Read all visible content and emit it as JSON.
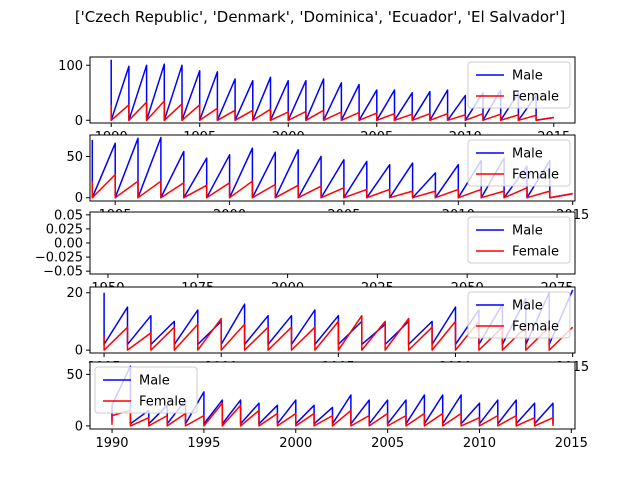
{
  "figure": {
    "title": "['Czech Republic', 'Denmark', 'Dominica', 'Ecuador', 'El Salvador']"
  },
  "colors": {
    "male": "#0000ff",
    "female": "#ff0000"
  },
  "chart_data": [
    {
      "type": "line",
      "country": "Czech Republic",
      "xlim": [
        1988.8,
        2016.2
      ],
      "ylim": [
        -5,
        115
      ],
      "xticks": [
        1990,
        1995,
        2000,
        2005,
        2010,
        2015
      ],
      "yticks": [
        0,
        100
      ],
      "legend": {
        "entries": [
          "Male",
          "Female"
        ],
        "loc": "upper right"
      },
      "series": [
        {
          "name": "Male",
          "x": [
            1990,
            1990,
            1991,
            1991,
            1992,
            1992,
            1993,
            1993,
            1994,
            1994,
            1995,
            1995,
            1996,
            1996,
            1997,
            1997,
            1998,
            1998,
            1999,
            1999,
            2000,
            2000,
            2001,
            2001,
            2002,
            2002,
            2003,
            2003,
            2004,
            2004,
            2005,
            2005,
            2006,
            2006,
            2007,
            2007,
            2008,
            2008,
            2009,
            2009,
            2010,
            2010,
            2011,
            2011,
            2012,
            2012,
            2013,
            2013,
            2014,
            2014,
            2015
          ],
          "y": [
            110,
            0,
            98,
            0,
            100,
            0,
            102,
            0,
            100,
            0,
            90,
            0,
            88,
            0,
            75,
            0,
            72,
            0,
            78,
            0,
            72,
            0,
            72,
            0,
            75,
            0,
            68,
            0,
            65,
            0,
            55,
            0,
            55,
            0,
            50,
            0,
            52,
            0,
            55,
            0,
            45,
            0,
            50,
            0,
            55,
            0,
            50,
            0,
            45,
            0,
            5
          ]
        },
        {
          "name": "Female",
          "x": [
            1990,
            1990,
            1991,
            1991,
            1992,
            1992,
            1993,
            1993,
            1994,
            1994,
            1995,
            1995,
            1996,
            1996,
            1997,
            1997,
            1998,
            1998,
            1999,
            1999,
            2000,
            2000,
            2001,
            2001,
            2002,
            2002,
            2003,
            2003,
            2004,
            2004,
            2005,
            2005,
            2006,
            2006,
            2007,
            2007,
            2008,
            2008,
            2009,
            2009,
            2010,
            2010,
            2011,
            2011,
            2012,
            2012,
            2013,
            2013,
            2014,
            2014,
            2015
          ],
          "y": [
            28,
            0,
            28,
            0,
            33,
            0,
            35,
            0,
            30,
            0,
            28,
            0,
            22,
            0,
            18,
            0,
            18,
            0,
            20,
            0,
            15,
            0,
            16,
            0,
            18,
            0,
            15,
            0,
            14,
            0,
            13,
            0,
            12,
            0,
            11,
            0,
            12,
            0,
            12,
            0,
            10,
            0,
            12,
            0,
            11,
            0,
            10,
            0,
            9,
            0,
            5
          ]
        }
      ]
    },
    {
      "type": "line",
      "country": "Denmark",
      "xlim": [
        1993.9,
        2015.1
      ],
      "ylim": [
        -4,
        76
      ],
      "xticks": [
        1995,
        2000,
        2005,
        2010,
        2015
      ],
      "yticks": [
        0,
        50
      ],
      "legend": {
        "entries": [
          "Male",
          "Female"
        ],
        "loc": "upper right"
      },
      "series": [
        {
          "name": "Male",
          "x": [
            1994,
            1994,
            1995,
            1995,
            1996,
            1996,
            1997,
            1997,
            1998,
            1998,
            1999,
            1999,
            2000,
            2000,
            2001,
            2001,
            2002,
            2002,
            2003,
            2003,
            2004,
            2004,
            2005,
            2005,
            2006,
            2006,
            2007,
            2007,
            2008,
            2008,
            2009,
            2009,
            2010,
            2010,
            2011,
            2011,
            2012,
            2012,
            2013,
            2013,
            2014,
            2014,
            2015
          ],
          "y": [
            70,
            0,
            66,
            0,
            72,
            0,
            73,
            0,
            56,
            0,
            48,
            0,
            52,
            0,
            60,
            0,
            55,
            0,
            58,
            0,
            50,
            0,
            46,
            0,
            44,
            0,
            40,
            0,
            42,
            0,
            30,
            0,
            40,
            0,
            45,
            0,
            48,
            0,
            38,
            0,
            45,
            0,
            5
          ]
        },
        {
          "name": "Female",
          "x": [
            1994,
            1994,
            1995,
            1995,
            1996,
            1996,
            1997,
            1997,
            1998,
            1998,
            1999,
            1999,
            2000,
            2000,
            2001,
            2001,
            2002,
            2002,
            2003,
            2003,
            2004,
            2004,
            2005,
            2005,
            2006,
            2006,
            2007,
            2007,
            2008,
            2008,
            2009,
            2009,
            2010,
            2010,
            2011,
            2011,
            2012,
            2012,
            2013,
            2013,
            2014,
            2014,
            2015
          ],
          "y": [
            20,
            0,
            28,
            0,
            20,
            0,
            20,
            0,
            18,
            0,
            15,
            0,
            18,
            0,
            20,
            0,
            16,
            0,
            15,
            0,
            14,
            0,
            12,
            0,
            10,
            0,
            10,
            0,
            8,
            0,
            8,
            0,
            10,
            0,
            10,
            0,
            8,
            0,
            12,
            0,
            8,
            0,
            5
          ]
        }
      ]
    },
    {
      "type": "line",
      "country": "Dominica",
      "xlim": [
        1945,
        2080
      ],
      "ylim": [
        -0.055,
        0.055
      ],
      "xticks": [
        1950,
        1975,
        2000,
        2025,
        2050,
        2075
      ],
      "xtick_labels": [
        "1950",
        "1975",
        "2000",
        "2025",
        "2050",
        "2075"
      ],
      "xticks_partially_hidden": true,
      "yticks": [
        -0.05,
        -0.025,
        0.0,
        0.025,
        0.05
      ],
      "ytick_labels": [
        "−0.05",
        "−0.025",
        "0.00",
        "0.025",
        "0.05"
      ],
      "legend": {
        "entries": [
          "Male",
          "Female"
        ],
        "loc": "upper right"
      },
      "series": [
        {
          "name": "Male",
          "x": [],
          "y": []
        },
        {
          "name": "Female",
          "x": [],
          "y": []
        }
      ]
    },
    {
      "type": "line",
      "country": "Ecuador",
      "xlim": [
        1994.4,
        2015.1
      ],
      "ylim": [
        -1,
        22
      ],
      "xticks": [
        1995,
        2000,
        2005,
        2010,
        2015
      ],
      "yticks": [
        0,
        20
      ],
      "legend": {
        "entries": [
          "Male",
          "Female"
        ],
        "loc": "upper right"
      },
      "series": [
        {
          "name": "Male",
          "x": [
            1995,
            1995,
            1996,
            1996,
            1997,
            1997,
            1998,
            1998,
            1999,
            1999,
            2000,
            2000,
            2001,
            2001,
            2002,
            2002,
            2003,
            2003,
            2004,
            2004,
            2005,
            2005,
            2006,
            2006,
            2007,
            2007,
            2008,
            2008,
            2009,
            2009,
            2010,
            2010,
            2011,
            2011,
            2012,
            2012,
            2013,
            2013,
            2014,
            2014,
            2015
          ],
          "y": [
            20,
            2,
            15,
            2,
            12,
            2,
            10,
            2,
            14,
            2,
            10,
            2,
            16,
            2,
            12,
            2,
            12,
            2,
            14,
            2,
            12,
            2,
            10,
            2,
            9,
            2,
            10,
            2,
            10,
            2,
            15,
            2,
            14,
            2,
            16,
            2,
            18,
            2,
            20,
            2,
            21
          ]
        },
        {
          "name": "Female",
          "x": [
            1995,
            1995,
            1996,
            1996,
            1997,
            1997,
            1998,
            1998,
            1999,
            1999,
            2000,
            2000,
            2001,
            2001,
            2002,
            2002,
            2003,
            2003,
            2004,
            2004,
            2005,
            2005,
            2006,
            2006,
            2007,
            2007,
            2008,
            2008,
            2009,
            2009,
            2010,
            2010,
            2011,
            2011,
            2012,
            2012,
            2013,
            2013,
            2014,
            2014,
            2015
          ],
          "y": [
            5,
            0,
            8,
            0,
            6,
            0,
            8,
            0,
            9,
            0,
            11,
            0,
            9,
            0,
            8,
            0,
            8,
            0,
            8,
            0,
            10,
            0,
            12,
            0,
            10,
            0,
            11,
            0,
            8,
            0,
            10,
            0,
            10,
            0,
            8,
            0,
            8,
            0,
            8,
            0,
            8
          ]
        }
      ]
    },
    {
      "type": "line",
      "country": "El Salvador",
      "xlim": [
        1988.8,
        2015.2
      ],
      "ylim": [
        -3,
        62
      ],
      "xticks": [
        1990,
        1995,
        2000,
        2005,
        2010,
        2015
      ],
      "yticks": [
        0,
        50
      ],
      "legend": {
        "entries": [
          "Male",
          "Female"
        ],
        "loc": "upper left"
      },
      "series": [
        {
          "name": "Male",
          "x": [
            1990,
            1990,
            1991,
            1991,
            1992,
            1992,
            1993,
            1993,
            1994,
            1994,
            1995,
            1995,
            1996,
            1996,
            1997,
            1997,
            1998,
            1998,
            1999,
            1999,
            2000,
            2000,
            2001,
            2001,
            2002,
            2002,
            2003,
            2003,
            2004,
            2004,
            2005,
            2005,
            2006,
            2006,
            2007,
            2007,
            2008,
            2008,
            2009,
            2009,
            2010,
            2010,
            2011,
            2011,
            2012,
            2012,
            2013,
            2013,
            2014,
            2014
          ],
          "y": [
            5,
            20,
            58,
            2,
            15,
            2,
            20,
            2,
            25,
            2,
            33,
            2,
            25,
            2,
            25,
            2,
            22,
            2,
            20,
            2,
            25,
            2,
            20,
            2,
            18,
            2,
            30,
            2,
            25,
            2,
            25,
            2,
            25,
            2,
            30,
            2,
            30,
            2,
            30,
            2,
            22,
            2,
            25,
            2,
            25,
            2,
            22,
            2,
            22,
            2
          ]
        },
        {
          "name": "Female",
          "x": [
            1990,
            1990,
            1991,
            1991,
            1992,
            1992,
            1993,
            1993,
            1994,
            1994,
            1995,
            1995,
            1996,
            1996,
            1997,
            1997,
            1998,
            1998,
            1999,
            1999,
            2000,
            2000,
            2001,
            2001,
            2002,
            2002,
            2003,
            2003,
            2004,
            2004,
            2005,
            2005,
            2006,
            2006,
            2007,
            2007,
            2008,
            2008,
            2009,
            2009,
            2010,
            2010,
            2011,
            2011,
            2012,
            2012,
            2013,
            2013,
            2014,
            2014
          ],
          "y": [
            1,
            10,
            15,
            0,
            8,
            0,
            10,
            0,
            12,
            0,
            10,
            0,
            22,
            0,
            20,
            0,
            15,
            0,
            12,
            0,
            12,
            0,
            12,
            0,
            10,
            0,
            15,
            0,
            10,
            0,
            12,
            0,
            10,
            0,
            12,
            0,
            12,
            0,
            12,
            0,
            8,
            0,
            10,
            0,
            10,
            0,
            8,
            0,
            8,
            0
          ]
        }
      ]
    }
  ]
}
